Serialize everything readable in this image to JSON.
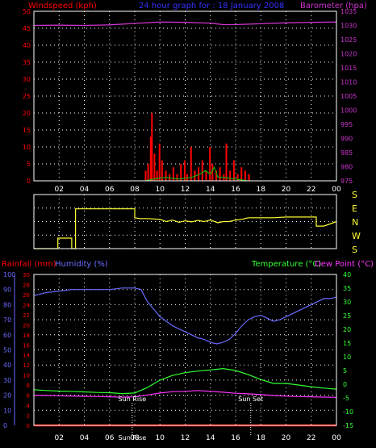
{
  "header": {
    "left": "Windspeed (kph)",
    "center": "24 hour graph for : 18 January 2008",
    "right": "Barometer (hpa)"
  },
  "colors": {
    "background": "#000000",
    "frame": "#ffffff",
    "grid": "#ffffff",
    "wind_speed": "#ff0000",
    "gust": "#00cc00",
    "barometer": "#cc33cc",
    "wind_dir": "#ffff33",
    "rainfall": "#ff0000",
    "humidity": "#6a6aff",
    "temperature": "#33ff33",
    "dewpoint": "#ff33ff",
    "sun_marker": "#ffffff"
  },
  "chart_data": [
    {
      "id": "wind-barometer",
      "type": "line",
      "title": "24 hour graph for : 18 January 2008",
      "grid": true,
      "x_ticks": [
        "02",
        "04",
        "06",
        "08",
        "10",
        "12",
        "14",
        "16",
        "18",
        "20",
        "22",
        "00"
      ],
      "ylabel_left": "Windspeed (kph)",
      "ylim_left": [
        0,
        50
      ],
      "yticks_left": [
        0,
        5,
        10,
        15,
        20,
        25,
        30,
        35,
        40,
        45,
        50
      ],
      "ylabel_right": "Barometer (hpa)",
      "ylim_right": [
        975,
        1035
      ],
      "yticks_right": [
        975,
        980,
        985,
        990,
        995,
        1000,
        1005,
        1010,
        1015,
        1020,
        1025,
        1030,
        1035
      ],
      "series": [
        {
          "key": "barometer",
          "axis": "right",
          "x": [
            0,
            2,
            4,
            6,
            8,
            10,
            12,
            14,
            15,
            16,
            18,
            20,
            22,
            24
          ],
          "values": [
            1030.0,
            1030.1,
            1030.0,
            1030.2,
            1030.7,
            1031.2,
            1031.1,
            1030.8,
            1030.3,
            1030.3,
            1030.6,
            1030.9,
            1031.1,
            1031.2
          ]
        },
        {
          "key": "wind",
          "axis": "left",
          "bars": [
            [
              8.8,
              3
            ],
            [
              9.0,
              5
            ],
            [
              9.2,
              13
            ],
            [
              9.3,
              20
            ],
            [
              9.5,
              8
            ],
            [
              9.7,
              3
            ],
            [
              9.9,
              11
            ],
            [
              10.1,
              6
            ],
            [
              10.4,
              3
            ],
            [
              10.7,
              2
            ],
            [
              11.0,
              4
            ],
            [
              11.3,
              2
            ],
            [
              11.6,
              5
            ],
            [
              11.9,
              6
            ],
            [
              12.1,
              2
            ],
            [
              12.4,
              10
            ],
            [
              12.7,
              3
            ],
            [
              13.0,
              4
            ],
            [
              13.3,
              6
            ],
            [
              13.6,
              3
            ],
            [
              13.9,
              10
            ],
            [
              14.1,
              5
            ],
            [
              14.4,
              3
            ],
            [
              14.7,
              4
            ],
            [
              15.0,
              2
            ],
            [
              15.2,
              11
            ],
            [
              15.5,
              3
            ],
            [
              15.8,
              6
            ],
            [
              16.1,
              2
            ],
            [
              16.4,
              4
            ],
            [
              16.7,
              3
            ],
            [
              17.0,
              2
            ]
          ]
        },
        {
          "key": "gust",
          "axis": "left",
          "x": [
            8.8,
            9.5,
            10.5,
            11.5,
            12.5,
            13.2,
            13.6,
            14.0,
            14.3,
            14.6,
            15.0,
            16.0,
            17.0
          ],
          "values": [
            0,
            0.5,
            1,
            0.5,
            1,
            2,
            3,
            2,
            4,
            1,
            1,
            0.5,
            0
          ]
        }
      ]
    },
    {
      "id": "wind-direction",
      "type": "line",
      "grid": true,
      "x_ticks": [],
      "ylabel_right": "",
      "yticks_right_labels": [
        "S",
        "E",
        "N",
        "W",
        "S"
      ],
      "ylim": [
        0,
        360
      ],
      "series": [
        {
          "key": "wind_dir",
          "x": [
            0,
            1.9,
            1.9,
            3.0,
            3.0,
            3.3,
            3.3,
            8.0,
            8.0,
            8.4,
            9,
            10,
            10.5,
            11,
            11.5,
            12,
            12.5,
            13,
            13.5,
            14,
            14.6,
            15,
            15.5,
            16,
            16.5,
            17,
            17.5,
            18,
            19,
            20,
            21,
            22,
            22.4,
            22.4,
            23,
            24
          ],
          "values": [
            0,
            0,
            70,
            70,
            0,
            0,
            265,
            265,
            205,
            200,
            200,
            195,
            180,
            190,
            175,
            185,
            178,
            188,
            180,
            190,
            172,
            180,
            180,
            190,
            195,
            205,
            205,
            205,
            205,
            210,
            210,
            210,
            210,
            150,
            150,
            180
          ]
        }
      ]
    },
    {
      "id": "temperature-humidity",
      "type": "line",
      "grid": true,
      "x_ticks": [
        "02",
        "04",
        "06",
        "08",
        "10",
        "12",
        "14",
        "16",
        "18",
        "20",
        "22",
        "00"
      ],
      "ylabel_rain": "Rainfall (mm)",
      "ylabel_humidity": "Humidity (%)",
      "ylabel_temp": "Temperature (°C)",
      "ylabel_dew": "Dew Point (°C)",
      "ylim_humidity": [
        0,
        100
      ],
      "yticks_humidity": [
        0,
        10,
        20,
        30,
        40,
        50,
        60,
        70,
        80,
        90,
        100
      ],
      "ylim_rain": [
        0,
        30
      ],
      "yticks_rain": [
        0,
        2,
        4,
        6,
        8,
        10,
        12,
        14,
        16,
        18,
        20,
        22,
        24,
        26,
        28,
        30
      ],
      "ylim_temp": [
        -15,
        40
      ],
      "yticks_temp": [
        -15,
        -10,
        -5,
        0,
        5,
        10,
        15,
        20,
        25,
        30,
        35,
        40
      ],
      "annotations": [
        {
          "label": "Sun Rise",
          "x": 7.8
        },
        {
          "label": "Sun Set",
          "x": 17.2
        }
      ],
      "bottom_label": "Sun Rise",
      "series": [
        {
          "key": "humidity",
          "axis": "humidity",
          "x": [
            0,
            1,
            2,
            3,
            4,
            5,
            6,
            7,
            8,
            8.5,
            9,
            9.5,
            10,
            10.5,
            11,
            11.5,
            12,
            12.5,
            13,
            13.5,
            14,
            14.5,
            15,
            15.5,
            16,
            16.5,
            17,
            17.5,
            18,
            18.5,
            19,
            19.5,
            20,
            20.5,
            21,
            21.5,
            22,
            22.5,
            23,
            23.5,
            24
          ],
          "values": [
            86,
            88,
            89,
            90,
            90,
            90,
            90,
            91,
            91,
            90,
            82,
            77,
            72,
            69,
            66,
            64,
            62,
            60,
            58,
            57,
            55,
            54,
            55,
            57,
            61,
            66,
            70,
            72,
            73,
            71,
            69,
            70,
            72,
            74,
            76,
            78,
            80,
            82,
            84,
            84,
            85
          ]
        },
        {
          "key": "temperature",
          "axis": "temp",
          "x": [
            0,
            1,
            2,
            3,
            4,
            5,
            6,
            7,
            8,
            9,
            10,
            11,
            12,
            13,
            14,
            15,
            16,
            17,
            18,
            19,
            20,
            21,
            22,
            23,
            24
          ],
          "values": [
            -2,
            -2.3,
            -2.5,
            -2.6,
            -2.8,
            -3,
            -3.1,
            -3.4,
            -3.2,
            -1.2,
            1.5,
            3.2,
            4.2,
            4.8,
            5.2,
            5.7,
            5,
            3.5,
            1.7,
            0.3,
            0.3,
            -0.3,
            -0.9,
            -1.4,
            -1.8
          ]
        },
        {
          "key": "dewpoint",
          "axis": "temp",
          "x": [
            0,
            1,
            2,
            3,
            4,
            5,
            6,
            7,
            8,
            9,
            10,
            11,
            12,
            13,
            14,
            15,
            16,
            17,
            18,
            19,
            20,
            21,
            22,
            23,
            24
          ],
          "values": [
            -4,
            -4.1,
            -4.2,
            -4.3,
            -4.4,
            -4.5,
            -4.6,
            -4.7,
            -4.6,
            -3.9,
            -3.2,
            -2.7,
            -2.6,
            -2.3,
            -2.6,
            -2.9,
            -3.3,
            -3.5,
            -3.8,
            -4.1,
            -4.3,
            -4.5,
            -4.6,
            -4.7,
            -4.8
          ]
        },
        {
          "key": "rainfall",
          "axis": "rain",
          "x": [
            0,
            24
          ],
          "values": [
            0,
            0
          ]
        }
      ]
    }
  ]
}
